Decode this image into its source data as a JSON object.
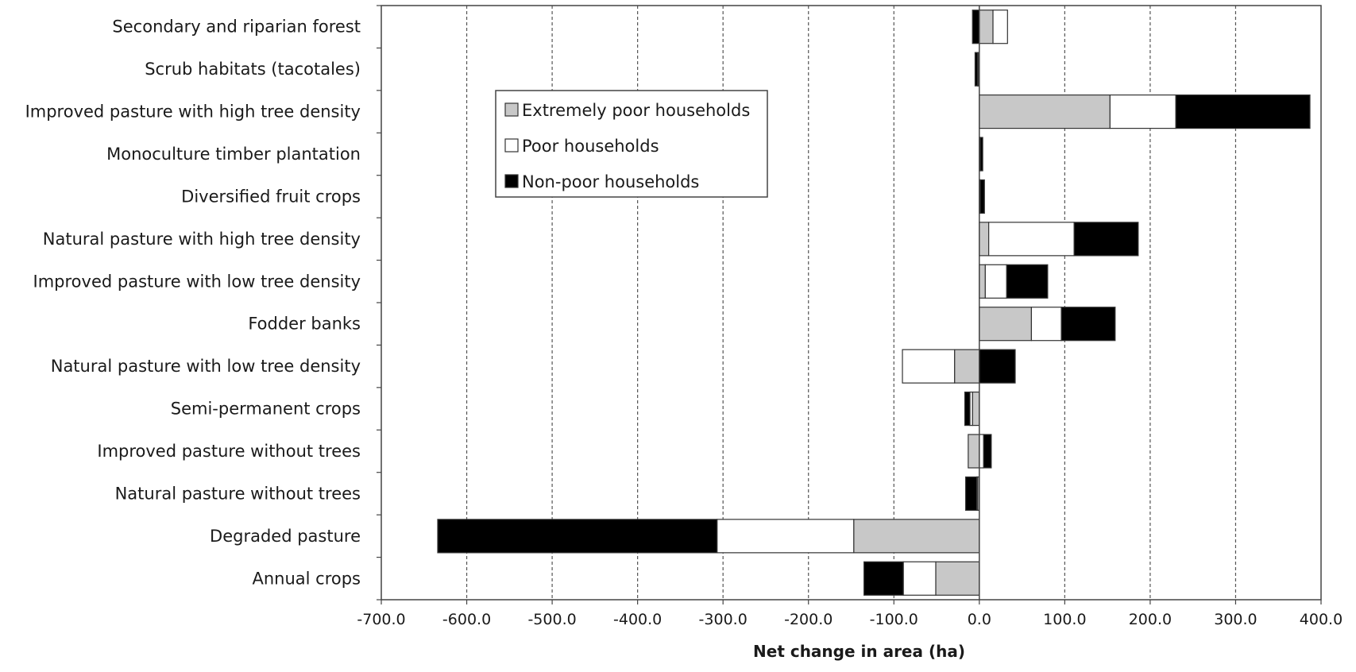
{
  "chart_data": {
    "type": "bar",
    "orientation": "horizontal",
    "stacked": true,
    "title": "",
    "xlabel": "Net change in area (ha)",
    "ylabel": "",
    "xlim": [
      -700,
      400
    ],
    "xticks": [
      -700,
      -600,
      -500,
      -400,
      -300,
      -200,
      -100,
      0,
      100,
      200,
      300,
      400
    ],
    "xtick_labels": [
      "-700.0",
      "-600.0",
      "-500.0",
      "-400.0",
      "-300.0",
      "-200.0",
      "-100.0",
      "0.0",
      "100.0",
      "200.0",
      "300.0",
      "400.0"
    ],
    "grid": "vertical dashed",
    "legend_position": "top-left",
    "categories": [
      "Secondary and riparian forest",
      "Scrub habitats (tacotales)",
      "Improved pasture with high tree density",
      "Monoculture timber plantation",
      "Diversified fruit crops",
      "Natural pasture with high tree density",
      "Improved pasture with low tree density",
      "Fodder banks",
      "Natural pasture with low tree density",
      "Semi-permanent crops",
      "Improved pasture without trees",
      "Natural pasture without trees",
      "Degraded pasture",
      "Annual crops"
    ],
    "series": [
      {
        "name": "Extremely poor households",
        "color": "#c8c8c8",
        "values": [
          16,
          -1,
          153,
          0,
          0,
          11,
          7,
          61,
          -29,
          -8,
          -13,
          -2,
          -147,
          -51
        ]
      },
      {
        "name": "Poor households",
        "color": "#ffffff",
        "values": [
          17,
          -1,
          77,
          1,
          1,
          100,
          25,
          35,
          -61,
          -3,
          5,
          -1,
          -160,
          -38
        ]
      },
      {
        "name": "Non-poor households",
        "color": "#000000",
        "values": [
          -8,
          -3,
          157,
          3,
          5,
          75,
          48,
          63,
          42,
          -6,
          9,
          -13,
          -327,
          -46
        ]
      }
    ]
  }
}
